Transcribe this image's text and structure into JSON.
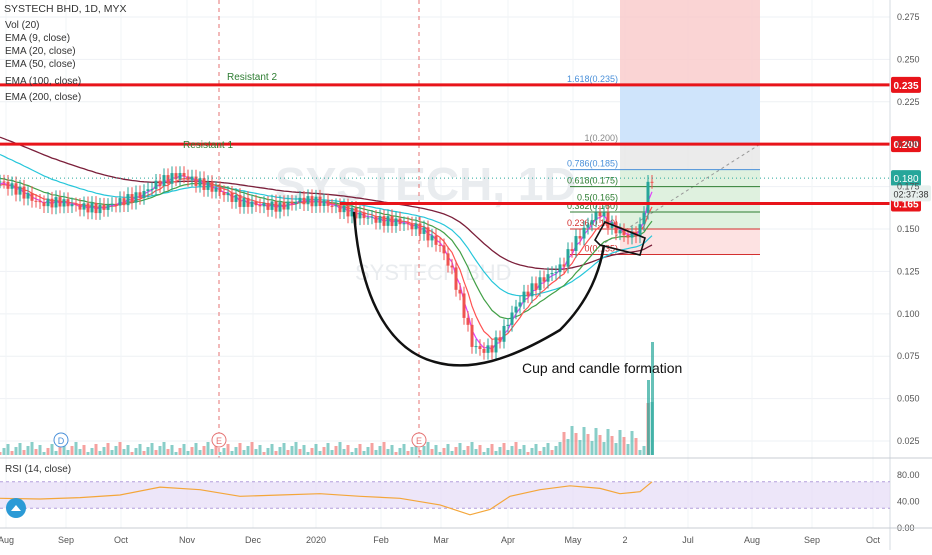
{
  "legend": {
    "title": "SYSTECH BHD, 1D, MYX",
    "lines": [
      "Vol (20)",
      "EMA (9, close)",
      "EMA (20, close)",
      "EMA (50, close)",
      "EMA (100, close)",
      "EMA (200, close)"
    ]
  },
  "watermark": {
    "line1": "SYSTECH, 1D",
    "line2": "SYSTECH BHD"
  },
  "price_axis": {
    "ticks": [
      "0.275",
      "0.250",
      "0.225",
      "0.200",
      "0.175",
      "0.150",
      "0.125",
      "0.100",
      "0.075",
      "0.050",
      "0.025"
    ],
    "current_price": "0.180",
    "countdown": "02:37:38",
    "levels": [
      "0.235",
      "0.200",
      "0.165"
    ]
  },
  "time_axis": [
    "Aug",
    "Sep",
    "Oct",
    "Nov",
    "Dec",
    "2020",
    "Feb",
    "Mar",
    "Apr",
    "May",
    "2",
    "Jul",
    "Aug",
    "Sep",
    "Oct"
  ],
  "annotations": {
    "resistant_1": "Resistant 1",
    "resistant_2": "Resistant 2",
    "formation": "Cup and candle formation",
    "fib": [
      "1.618(0.235)",
      "1(0.200)",
      "0.786(0.185)",
      "0.618(0.175)",
      "0.5(0.165)",
      "0.382(0.160)",
      "0.236(0.150)",
      "0(0.135)"
    ]
  },
  "events": [
    "D",
    "E",
    "E"
  ],
  "rsi": {
    "label": "RSI (14, close)",
    "ticks": [
      "80.00",
      "40.00",
      "0.00"
    ]
  },
  "colors": {
    "up": "#26a69a",
    "down": "#ef5350",
    "resistance": "#e8141a",
    "ema9": "#e040fb",
    "ema20": "#ff5252",
    "ema50": "#43a047",
    "ema100": "#26c6da",
    "ema200": "#7b1f3a",
    "rsi": "#f4a63a",
    "rsi_band": "#e6dcf7"
  },
  "chart_data": {
    "type": "candlestick",
    "symbol": "SYSTECH BHD",
    "timeframe": "1D",
    "ylim": [
      0.015,
      0.285
    ],
    "resistance_levels": [
      0.235,
      0.2,
      0.165
    ],
    "last_price": 0.18,
    "fib_levels": [
      {
        "ratio": 1.618,
        "price": 0.235
      },
      {
        "ratio": 1,
        "price": 0.2
      },
      {
        "ratio": 0.786,
        "price": 0.185
      },
      {
        "ratio": 0.618,
        "price": 0.175
      },
      {
        "ratio": 0.5,
        "price": 0.165
      },
      {
        "ratio": 0.382,
        "price": 0.16
      },
      {
        "ratio": 0.236,
        "price": 0.15
      },
      {
        "ratio": 0,
        "price": 0.135
      }
    ],
    "close_path": [
      [
        0,
        0.178
      ],
      [
        20,
        0.172
      ],
      [
        40,
        0.165
      ],
      [
        60,
        0.166
      ],
      [
        80,
        0.163
      ],
      [
        100,
        0.162
      ],
      [
        120,
        0.166
      ],
      [
        140,
        0.17
      ],
      [
        160,
        0.178
      ],
      [
        180,
        0.182
      ],
      [
        200,
        0.177
      ],
      [
        220,
        0.172
      ],
      [
        240,
        0.166
      ],
      [
        260,
        0.164
      ],
      [
        280,
        0.163
      ],
      [
        300,
        0.167
      ],
      [
        320,
        0.166
      ],
      [
        340,
        0.162
      ],
      [
        360,
        0.158
      ],
      [
        380,
        0.155
      ],
      [
        400,
        0.154
      ],
      [
        420,
        0.15
      ],
      [
        440,
        0.14
      ],
      [
        452,
        0.125
      ],
      [
        462,
        0.105
      ],
      [
        472,
        0.082
      ],
      [
        482,
        0.078
      ],
      [
        492,
        0.08
      ],
      [
        502,
        0.088
      ],
      [
        512,
        0.1
      ],
      [
        522,
        0.11
      ],
      [
        532,
        0.115
      ],
      [
        542,
        0.12
      ],
      [
        552,
        0.124
      ],
      [
        562,
        0.128
      ],
      [
        572,
        0.14
      ],
      [
        582,
        0.148
      ],
      [
        592,
        0.156
      ],
      [
        600,
        0.16
      ],
      [
        610,
        0.152
      ],
      [
        620,
        0.148
      ],
      [
        630,
        0.145
      ],
      [
        640,
        0.15
      ],
      [
        648,
        0.175
      ],
      [
        652,
        0.18
      ]
    ],
    "rsi_range": [
      0,
      100
    ],
    "rsi_bands": [
      70,
      30
    ],
    "rsi_path": [
      [
        0,
        45
      ],
      [
        40,
        44
      ],
      [
        80,
        46
      ],
      [
        120,
        50
      ],
      [
        160,
        62
      ],
      [
        200,
        58
      ],
      [
        240,
        48
      ],
      [
        280,
        50
      ],
      [
        320,
        52
      ],
      [
        360,
        48
      ],
      [
        400,
        45
      ],
      [
        440,
        35
      ],
      [
        470,
        20
      ],
      [
        490,
        28
      ],
      [
        510,
        48
      ],
      [
        540,
        58
      ],
      [
        570,
        64
      ],
      [
        600,
        60
      ],
      [
        620,
        52
      ],
      [
        640,
        55
      ],
      [
        652,
        70
      ]
    ]
  }
}
